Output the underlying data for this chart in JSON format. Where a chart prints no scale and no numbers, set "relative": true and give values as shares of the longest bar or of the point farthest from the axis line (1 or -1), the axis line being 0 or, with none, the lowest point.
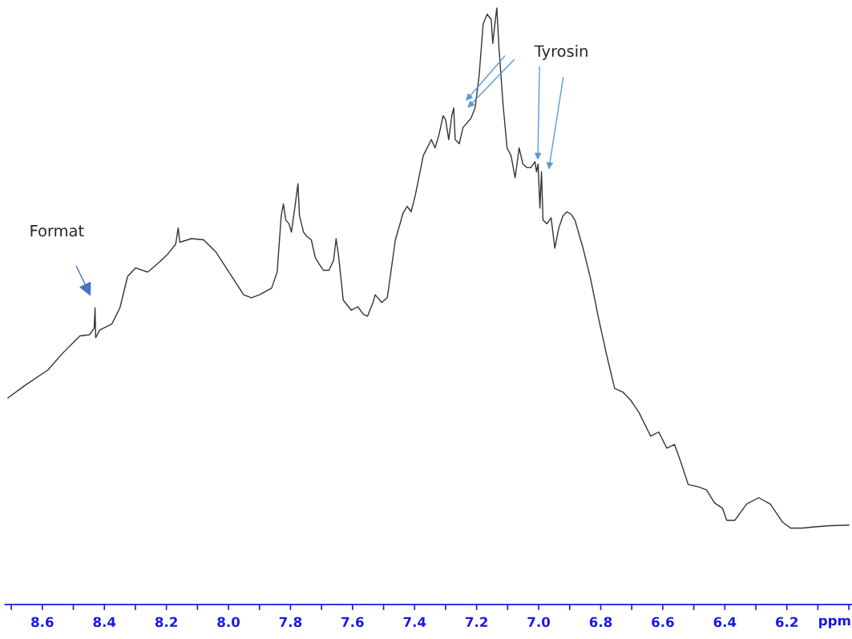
{
  "chart_data": {
    "type": "line",
    "relative": true,
    "xlabel": "ppm",
    "xlim": [
      8.72,
      5.99
    ],
    "xticks": [
      {
        "value": 8.7,
        "label": null
      },
      8.6,
      {
        "value": 8.5,
        "label": null
      },
      8.4,
      {
        "value": 8.3,
        "label": null
      },
      8.2,
      {
        "value": 8.1,
        "label": null
      },
      {
        "value": 8.0,
        "label": "8.0"
      },
      {
        "value": 7.9,
        "label": null
      },
      7.8,
      {
        "value": 7.7,
        "label": null
      },
      7.6,
      {
        "value": 7.5,
        "label": null
      },
      7.4,
      {
        "value": 7.3,
        "label": null
      },
      7.2,
      {
        "value": 7.1,
        "label": null
      },
      {
        "value": 7.0,
        "label": "7.0"
      },
      {
        "value": 6.9,
        "label": null
      },
      6.8,
      {
        "value": 6.7,
        "label": null
      },
      6.6,
      {
        "value": 6.5,
        "label": null
      },
      6.4,
      {
        "value": 6.3,
        "label": null
      },
      6.2,
      {
        "value": 6.1,
        "label": null
      },
      {
        "value": 6.0,
        "label": null
      }
    ],
    "series": [
      {
        "color": "#333333",
        "x": [
          8.711,
          8.659,
          8.582,
          8.531,
          8.479,
          8.448,
          8.433,
          8.43,
          8.428,
          8.415,
          8.376,
          8.35,
          8.325,
          8.299,
          8.26,
          8.222,
          8.196,
          8.17,
          8.162,
          8.157,
          8.119,
          8.08,
          8.041,
          7.99,
          7.951,
          7.926,
          7.9,
          7.861,
          7.843,
          7.83,
          7.823,
          7.815,
          7.805,
          7.797,
          7.789,
          7.781,
          7.776,
          7.771,
          7.758,
          7.748,
          7.733,
          7.72,
          7.707,
          7.694,
          7.676,
          7.661,
          7.653,
          7.645,
          7.63,
          7.604,
          7.583,
          7.565,
          7.552,
          7.534,
          7.527,
          7.506,
          7.488,
          7.462,
          7.437,
          7.424,
          7.411,
          7.398,
          7.372,
          7.346,
          7.334,
          7.321,
          7.308,
          7.3,
          7.29,
          7.28,
          7.274,
          7.269,
          7.256,
          7.244,
          7.218,
          7.205,
          7.192,
          7.179,
          7.166,
          7.153,
          7.148,
          7.141,
          7.135,
          7.128,
          7.115,
          7.102,
          7.089,
          7.076,
          7.063,
          7.051,
          7.038,
          7.025,
          7.012,
          7.007,
          7.002,
          6.996,
          6.991,
          6.986,
          6.973,
          6.96,
          6.948,
          6.935,
          6.922,
          6.909,
          6.896,
          6.883,
          6.857,
          6.832,
          6.806,
          6.78,
          6.755,
          6.729,
          6.703,
          6.677,
          6.639,
          6.613,
          6.587,
          6.562,
          6.544,
          6.518,
          6.484,
          6.459,
          6.433,
          6.407,
          6.394,
          6.368,
          6.33,
          6.291,
          6.253,
          6.214,
          6.188,
          6.15,
          6.111,
          6.06,
          6.0
        ],
        "values": [
          0.346,
          0.366,
          0.393,
          0.423,
          0.45,
          0.452,
          0.463,
          0.497,
          0.447,
          0.46,
          0.47,
          0.497,
          0.55,
          0.564,
          0.557,
          0.574,
          0.587,
          0.604,
          0.631,
          0.607,
          0.613,
          0.611,
          0.591,
          0.55,
          0.519,
          0.514,
          0.519,
          0.53,
          0.557,
          0.651,
          0.671,
          0.644,
          0.638,
          0.624,
          0.654,
          0.685,
          0.705,
          0.651,
          0.624,
          0.617,
          0.611,
          0.581,
          0.57,
          0.56,
          0.56,
          0.577,
          0.613,
          0.584,
          0.51,
          0.493,
          0.499,
          0.486,
          0.483,
          0.506,
          0.519,
          0.506,
          0.514,
          0.611,
          0.656,
          0.667,
          0.658,
          0.685,
          0.752,
          0.779,
          0.765,
          0.788,
          0.819,
          0.812,
          0.779,
          0.819,
          0.832,
          0.779,
          0.772,
          0.799,
          0.815,
          0.832,
          0.886,
          0.973,
          0.989,
          0.98,
          0.94,
          0.973,
          1,
          0.933,
          0.839,
          0.765,
          0.752,
          0.715,
          0.765,
          0.738,
          0.732,
          0.732,
          0.742,
          0.725,
          0.738,
          0.664,
          0.725,
          0.644,
          0.638,
          0.648,
          0.597,
          0.631,
          0.651,
          0.658,
          0.654,
          0.644,
          0.597,
          0.544,
          0.477,
          0.416,
          0.362,
          0.356,
          0.342,
          0.322,
          0.282,
          0.289,
          0.262,
          0.268,
          0.242,
          0.201,
          0.197,
          0.192,
          0.17,
          0.161,
          0.141,
          0.141,
          0.168,
          0.179,
          0.168,
          0.138,
          0.128,
          0.128,
          0.13,
          0.132,
          0.133
        ]
      }
    ],
    "annotations": [
      "Format",
      "Tyrosin"
    ]
  }
}
